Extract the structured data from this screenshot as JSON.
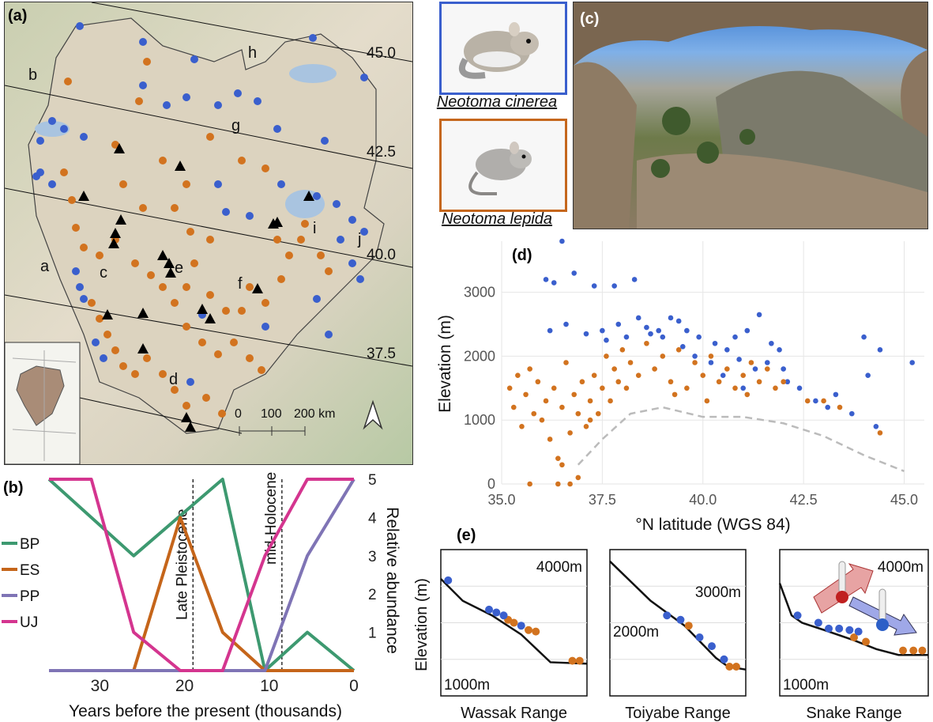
{
  "panels": {
    "a": {
      "label": "(a)",
      "region_letters": [
        "a",
        "b",
        "c",
        "d",
        "e",
        "f",
        "g",
        "h",
        "i",
        "j"
      ],
      "lat_labels": [
        "45.0",
        "42.5",
        "40.0",
        "37.5"
      ],
      "scale_ticks": [
        "0",
        "100",
        "200 km"
      ]
    },
    "b": {
      "label": "(b)"
    },
    "c": {
      "label": "(c)"
    },
    "d": {
      "label": "(d)"
    },
    "e": {
      "label": "(e)"
    }
  },
  "species": [
    {
      "name": "Neotoma cinerea",
      "color": "#3558b7"
    },
    {
      "name": "Neotoma lepida",
      "color": "#c5671d"
    }
  ],
  "colors": {
    "cinerea": "#3a5fcd",
    "lepida": "#d2731f",
    "BP": "#3d9970",
    "ES": "#c5651a",
    "PP": "#7f74b5",
    "UJ": "#d4358f",
    "dashed": "#bbbbbb"
  },
  "chart_data": [
    {
      "id": "b",
      "type": "line",
      "x": [
        36,
        31,
        26,
        21,
        15.5,
        10.5,
        5.5,
        0
      ],
      "xlim": [
        36,
        0
      ],
      "ylim": [
        0,
        5
      ],
      "xticks": [
        "30",
        "20",
        "10",
        "0"
      ],
      "xtick_values": [
        30,
        20,
        10,
        0
      ],
      "yticks": [
        "1",
        "2",
        "3",
        "4",
        "5"
      ],
      "xlabel": "Years before the present (thousands)",
      "ylabel": "Relative abundance",
      "series": [
        {
          "name": "BP",
          "x": [
            36,
            26,
            15.5,
            10.5,
            5.5,
            0
          ],
          "values": [
            5,
            3,
            5,
            0,
            1,
            0
          ]
        },
        {
          "name": "ES",
          "x": [
            36,
            26,
            20.5,
            15.5,
            10.5,
            0
          ],
          "values": [
            0,
            0,
            4,
            1,
            0,
            0
          ]
        },
        {
          "name": "PP",
          "x": [
            36,
            10.5,
            5.5,
            0
          ],
          "values": [
            0,
            0,
            3,
            5
          ]
        },
        {
          "name": "UJ",
          "x": [
            36,
            31,
            26,
            20.5,
            15.5,
            10.5,
            5.5,
            0
          ],
          "values": [
            5,
            5,
            1,
            0,
            0,
            3,
            5,
            5
          ]
        }
      ],
      "vlines": [
        {
          "x": 19,
          "label": "Late Pleistocene"
        },
        {
          "x": 8.5,
          "label": "mid-Holocene"
        }
      ]
    },
    {
      "id": "d",
      "type": "scatter",
      "xlabel": "°N latitude (WGS 84)",
      "ylabel": "Elevation (m)",
      "xlim": [
        35,
        45.5
      ],
      "ylim": [
        0,
        3800
      ],
      "xticks": [
        "35.0",
        "37.5",
        "40.0",
        "42.5",
        "45.0"
      ],
      "xtick_values": [
        35,
        37.5,
        40,
        42.5,
        45
      ],
      "yticks": [
        "0",
        "1000",
        "2000",
        "3000"
      ],
      "ytick_values": [
        0,
        1000,
        2000,
        3000
      ],
      "series": [
        {
          "name": "Neotoma cinerea",
          "points": [
            [
              36.1,
              3200
            ],
            [
              36.3,
              3150
            ],
            [
              36.5,
              3800
            ],
            [
              36.8,
              3300
            ],
            [
              37.3,
              3100
            ],
            [
              37.8,
              3100
            ],
            [
              38.3,
              3200
            ],
            [
              36.2,
              2400
            ],
            [
              36.6,
              2500
            ],
            [
              37.5,
              2400
            ],
            [
              37.9,
              2500
            ],
            [
              38.1,
              2300
            ],
            [
              38.4,
              2600
            ],
            [
              38.6,
              2450
            ],
            [
              38.9,
              2400
            ],
            [
              39.0,
              2300
            ],
            [
              39.2,
              2600
            ],
            [
              39.4,
              2550
            ],
            [
              39.6,
              2400
            ],
            [
              39.9,
              2300
            ],
            [
              40.3,
              2200
            ],
            [
              40.6,
              2100
            ],
            [
              40.8,
              2300
            ],
            [
              41.1,
              2400
            ],
            [
              41.4,
              2650
            ],
            [
              41.7,
              2200
            ],
            [
              41.9,
              2100
            ],
            [
              42.0,
              1800
            ],
            [
              42.1,
              1600
            ],
            [
              42.8,
              1300
            ],
            [
              43.1,
              1200
            ],
            [
              43.3,
              1400
            ],
            [
              43.7,
              1100
            ],
            [
              44.0,
              2300
            ],
            [
              44.1,
              1700
            ],
            [
              44.3,
              900
            ],
            [
              44.4,
              2100
            ],
            [
              45.2,
              1900
            ],
            [
              40.2,
              1900
            ],
            [
              40.5,
              1700
            ],
            [
              40.9,
              1950
            ],
            [
              41.0,
              1500
            ],
            [
              41.3,
              1800
            ],
            [
              39.8,
              2000
            ],
            [
              39.5,
              2150
            ],
            [
              38.7,
              2350
            ],
            [
              37.6,
              2250
            ],
            [
              37.1,
              2350
            ],
            [
              41.6,
              1900
            ],
            [
              42.4,
              1500
            ]
          ]
        },
        {
          "name": "Neotoma lepida",
          "points": [
            [
              35.2,
              1500
            ],
            [
              35.3,
              1200
            ],
            [
              35.4,
              1700
            ],
            [
              35.5,
              900
            ],
            [
              35.6,
              1400
            ],
            [
              35.7,
              1800
            ],
            [
              35.8,
              1100
            ],
            [
              35.9,
              1600
            ],
            [
              36.0,
              1000
            ],
            [
              36.1,
              1300
            ],
            [
              36.2,
              700
            ],
            [
              36.3,
              1500
            ],
            [
              36.4,
              400
            ],
            [
              36.5,
              1200
            ],
            [
              36.6,
              1900
            ],
            [
              36.7,
              800
            ],
            [
              36.8,
              1400
            ],
            [
              36.9,
              1100
            ],
            [
              37.0,
              1600
            ],
            [
              37.1,
              900
            ],
            [
              37.2,
              1300
            ],
            [
              37.3,
              1700
            ],
            [
              37.4,
              1100
            ],
            [
              37.5,
              1500
            ],
            [
              37.6,
              2000
            ],
            [
              37.7,
              1300
            ],
            [
              37.8,
              1800
            ],
            [
              37.9,
              1600
            ],
            [
              38.0,
              2100
            ],
            [
              38.2,
              1900
            ],
            [
              38.4,
              1700
            ],
            [
              38.6,
              2200
            ],
            [
              38.8,
              1800
            ],
            [
              39.0,
              2000
            ],
            [
              39.2,
              1600
            ],
            [
              39.4,
              2100
            ],
            [
              39.6,
              1500
            ],
            [
              39.8,
              1900
            ],
            [
              40.0,
              1700
            ],
            [
              40.2,
              2000
            ],
            [
              40.4,
              1600
            ],
            [
              40.6,
              1800
            ],
            [
              40.8,
              1500
            ],
            [
              41.0,
              1700
            ],
            [
              41.2,
              1900
            ],
            [
              41.4,
              1600
            ],
            [
              41.6,
              1800
            ],
            [
              41.8,
              1500
            ],
            [
              42.0,
              1600
            ],
            [
              35.7,
              0
            ],
            [
              36.4,
              0
            ],
            [
              36.7,
              0
            ],
            [
              36.5,
              300
            ],
            [
              36.9,
              100
            ],
            [
              37.2,
              1000
            ],
            [
              38.1,
              1500
            ],
            [
              39.3,
              1400
            ],
            [
              40.1,
              1300
            ],
            [
              41.1,
              1400
            ],
            [
              42.6,
              1300
            ],
            [
              43.0,
              1300
            ],
            [
              43.4,
              1200
            ],
            [
              44.4,
              800
            ]
          ]
        }
      ],
      "boundary": {
        "name": "minimum elevation",
        "x": [
          36.9,
          37.5,
          38.2,
          39.0,
          40.0,
          41.0,
          42.0,
          43.0,
          44.0,
          45.0
        ],
        "values": [
          300,
          700,
          1100,
          1200,
          1050,
          1050,
          950,
          750,
          450,
          200
        ]
      }
    },
    {
      "id": "e",
      "type": "line",
      "ylabel": "Elevation (m)",
      "subplots": [
        {
          "title": "Wassak Range",
          "top_label": "4000m",
          "bottom_label": "1000m",
          "profile": [
            [
              0,
              0.2
            ],
            [
              0.15,
              0.35
            ],
            [
              0.35,
              0.45
            ],
            [
              0.55,
              0.58
            ],
            [
              0.75,
              0.77
            ],
            [
              1.0,
              0.78
            ]
          ],
          "blue": [
            [
              0.05,
              0.21
            ],
            [
              0.33,
              0.41
            ],
            [
              0.38,
              0.43
            ],
            [
              0.43,
              0.45
            ],
            [
              0.55,
              0.52
            ]
          ],
          "orange": [
            [
              0.46,
              0.48
            ],
            [
              0.5,
              0.5
            ],
            [
              0.6,
              0.55
            ],
            [
              0.65,
              0.56
            ],
            [
              0.9,
              0.76
            ],
            [
              0.95,
              0.76
            ]
          ]
        },
        {
          "title": "Toiyabe Range",
          "top_label": "3000m",
          "bottom_label": "2000m",
          "profile": [
            [
              0,
              0.08
            ],
            [
              0.3,
              0.35
            ],
            [
              0.55,
              0.52
            ],
            [
              0.78,
              0.74
            ],
            [
              0.87,
              0.8
            ],
            [
              1.0,
              0.82
            ]
          ],
          "blue": [
            [
              0.42,
              0.45
            ],
            [
              0.52,
              0.48
            ],
            [
              0.66,
              0.6
            ],
            [
              0.75,
              0.66
            ],
            [
              0.84,
              0.75
            ]
          ],
          "orange": [
            [
              0.58,
              0.52
            ],
            [
              0.88,
              0.8
            ],
            [
              0.93,
              0.8
            ]
          ]
        },
        {
          "title": "Snake Range",
          "top_label": "4000m",
          "bottom_label": "1000m",
          "profile": [
            [
              0,
              0.23
            ],
            [
              0.08,
              0.45
            ],
            [
              0.15,
              0.5
            ],
            [
              0.3,
              0.55
            ],
            [
              0.5,
              0.62
            ],
            [
              0.65,
              0.68
            ],
            [
              0.8,
              0.72
            ],
            [
              1.0,
              0.72
            ]
          ],
          "blue": [
            [
              0.12,
              0.45
            ],
            [
              0.26,
              0.5
            ],
            [
              0.33,
              0.54
            ],
            [
              0.4,
              0.54
            ],
            [
              0.47,
              0.55
            ],
            [
              0.53,
              0.56
            ]
          ],
          "orange": [
            [
              0.5,
              0.6
            ],
            [
              0.58,
              0.63
            ],
            [
              0.83,
              0.69
            ],
            [
              0.9,
              0.69
            ],
            [
              0.96,
              0.69
            ]
          ]
        }
      ]
    }
  ]
}
